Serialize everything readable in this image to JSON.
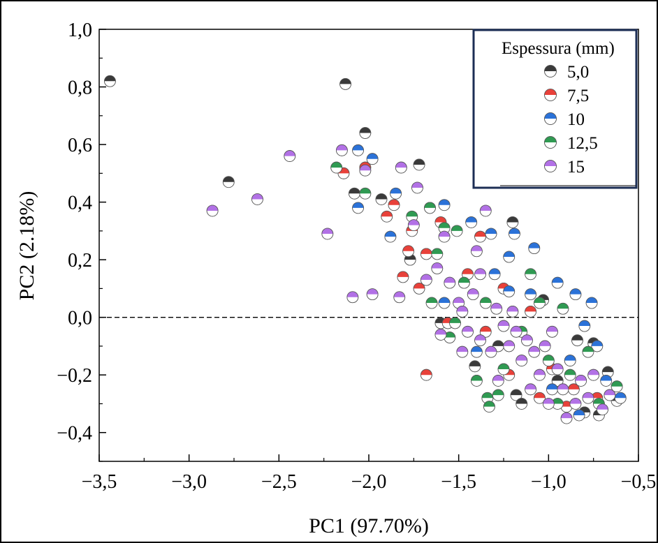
{
  "chart_data": {
    "type": "scatter",
    "xlabel": "PC1 (97.70%)",
    "ylabel": "PC2 (2.18%)",
    "xlim": [
      -3.5,
      -0.5
    ],
    "ylim": [
      -0.5,
      1.0
    ],
    "x_ticks": [
      "−3,5",
      "−3,0",
      "−2,5",
      "−2,0",
      "−1,5",
      "−1,0",
      "−0,5"
    ],
    "y_ticks": [
      "1,0",
      "0,8",
      "0,6",
      "0,4",
      "0,2",
      "0,0",
      "−0,2",
      "−0,4"
    ],
    "x_tick_values": [
      -3.5,
      -3.0,
      -2.5,
      -2.0,
      -1.5,
      -1.0,
      -0.5
    ],
    "y_tick_values": [
      1.0,
      0.8,
      0.6,
      0.4,
      0.2,
      0.0,
      -0.2,
      -0.4
    ],
    "reference_line": {
      "y": 0.0,
      "style": "dashed"
    },
    "legend": {
      "title": "Espessura (mm)",
      "placement": "top-right"
    },
    "series": [
      {
        "name": "5,0",
        "color": "#3a3a3a",
        "points": [
          [
            -3.44,
            0.82
          ],
          [
            -2.13,
            0.81
          ],
          [
            -2.02,
            0.64
          ],
          [
            -2.78,
            0.47
          ],
          [
            -1.72,
            0.53
          ],
          [
            -2.08,
            0.43
          ],
          [
            -1.93,
            0.41
          ],
          [
            -1.2,
            0.33
          ],
          [
            -1.77,
            0.2
          ],
          [
            -1.6,
            -0.02
          ],
          [
            -0.84,
            -0.08
          ],
          [
            -0.75,
            -0.09
          ],
          [
            -0.67,
            -0.19
          ],
          [
            -0.62,
            -0.29
          ],
          [
            -0.8,
            -0.33
          ],
          [
            -0.72,
            -0.34
          ],
          [
            -1.18,
            -0.27
          ],
          [
            -1.41,
            -0.17
          ],
          [
            -1.03,
            0.06
          ],
          [
            -1.28,
            -0.1
          ],
          [
            -1.15,
            -0.3
          ],
          [
            -0.95,
            -0.22
          ]
        ]
      },
      {
        "name": "7,5",
        "color": "#e8413a",
        "points": [
          [
            -2.14,
            0.5
          ],
          [
            -2.02,
            0.52
          ],
          [
            -1.86,
            0.39
          ],
          [
            -1.9,
            0.35
          ],
          [
            -1.66,
            0.38
          ],
          [
            -1.76,
            0.3
          ],
          [
            -1.78,
            0.23
          ],
          [
            -1.81,
            0.14
          ],
          [
            -1.68,
            0.22
          ],
          [
            -1.72,
            0.1
          ],
          [
            -1.6,
            0.33
          ],
          [
            -1.38,
            0.28
          ],
          [
            -1.56,
            -0.02
          ],
          [
            -1.68,
            -0.2
          ],
          [
            -1.25,
            0.1
          ],
          [
            -1.1,
            0.02
          ],
          [
            -0.98,
            -0.18
          ],
          [
            -0.86,
            -0.25
          ],
          [
            -0.73,
            -0.28
          ],
          [
            -1.35,
            -0.05
          ],
          [
            -1.22,
            -0.2
          ],
          [
            -1.05,
            -0.28
          ],
          [
            -0.9,
            -0.31
          ],
          [
            -1.45,
            0.15
          ]
        ]
      },
      {
        "name": "10",
        "color": "#2b72d8",
        "points": [
          [
            -2.06,
            0.58
          ],
          [
            -1.98,
            0.55
          ],
          [
            -2.06,
            0.38
          ],
          [
            -1.85,
            0.43
          ],
          [
            -1.88,
            0.28
          ],
          [
            -1.58,
            0.39
          ],
          [
            -1.43,
            0.33
          ],
          [
            -1.32,
            0.29
          ],
          [
            -1.22,
            0.21
          ],
          [
            -1.19,
            0.29
          ],
          [
            -1.08,
            0.24
          ],
          [
            -1.22,
            0.09
          ],
          [
            -0.95,
            0.12
          ],
          [
            -0.85,
            0.08
          ],
          [
            -0.76,
            0.05
          ],
          [
            -0.8,
            -0.03
          ],
          [
            -0.73,
            -0.1
          ],
          [
            -0.88,
            -0.15
          ],
          [
            -0.6,
            -0.28
          ],
          [
            -0.83,
            -0.34
          ],
          [
            -1.58,
            0.05
          ],
          [
            -1.1,
            0.08
          ],
          [
            -1.3,
            0.15
          ],
          [
            -0.98,
            -0.25
          ],
          [
            -1.4,
            -0.12
          ],
          [
            -0.68,
            -0.22
          ]
        ]
      },
      {
        "name": "12,5",
        "color": "#2f9a52",
        "points": [
          [
            -2.18,
            0.52
          ],
          [
            -2.02,
            0.43
          ],
          [
            -1.76,
            0.35
          ],
          [
            -1.66,
            0.38
          ],
          [
            -1.58,
            0.31
          ],
          [
            -1.62,
            0.22
          ],
          [
            -1.51,
            0.3
          ],
          [
            -1.65,
            0.05
          ],
          [
            -1.55,
            -0.07
          ],
          [
            -1.4,
            -0.22
          ],
          [
            -1.34,
            -0.28
          ],
          [
            -1.33,
            -0.31
          ],
          [
            -1.28,
            -0.27
          ],
          [
            -1.1,
            0.15
          ],
          [
            -0.92,
            0.03
          ],
          [
            -0.78,
            -0.12
          ],
          [
            -0.62,
            -0.24
          ],
          [
            -0.72,
            -0.3
          ],
          [
            -1.47,
            0.12
          ],
          [
            -1.35,
            0.05
          ],
          [
            -1.15,
            -0.05
          ],
          [
            -1.0,
            -0.15
          ],
          [
            -0.88,
            -0.2
          ],
          [
            -1.25,
            -0.18
          ],
          [
            -0.95,
            -0.3
          ],
          [
            -1.52,
            -0.02
          ],
          [
            -1.05,
            0.05
          ]
        ]
      },
      {
        "name": "15",
        "color": "#b271e6",
        "points": [
          [
            -2.87,
            0.37
          ],
          [
            -2.62,
            0.41
          ],
          [
            -2.44,
            0.56
          ],
          [
            -2.23,
            0.29
          ],
          [
            -2.15,
            0.58
          ],
          [
            -2.02,
            0.51
          ],
          [
            -2.09,
            0.07
          ],
          [
            -1.98,
            0.08
          ],
          [
            -1.82,
            0.52
          ],
          [
            -1.73,
            0.45
          ],
          [
            -1.83,
            0.07
          ],
          [
            -1.68,
            0.13
          ],
          [
            -1.62,
            0.17
          ],
          [
            -1.55,
            0.12
          ],
          [
            -1.5,
            0.05
          ],
          [
            -1.48,
            0.02
          ],
          [
            -1.45,
            -0.05
          ],
          [
            -1.38,
            -0.08
          ],
          [
            -1.35,
            0.37
          ],
          [
            -1.32,
            -0.12
          ],
          [
            -1.29,
            0.03
          ],
          [
            -1.25,
            -0.03
          ],
          [
            -1.22,
            -0.1
          ],
          [
            -1.18,
            -0.05
          ],
          [
            -1.15,
            -0.15
          ],
          [
            -1.12,
            -0.08
          ],
          [
            -1.08,
            -0.12
          ],
          [
            -1.05,
            -0.2
          ],
          [
            -1.02,
            -0.1
          ],
          [
            -0.98,
            -0.05
          ],
          [
            -0.95,
            -0.18
          ],
          [
            -0.92,
            -0.25
          ],
          [
            -0.9,
            -0.35
          ],
          [
            -0.85,
            -0.3
          ],
          [
            -0.82,
            -0.22
          ],
          [
            -0.78,
            -0.28
          ],
          [
            -0.75,
            -0.2
          ],
          [
            -0.7,
            -0.32
          ],
          [
            -0.66,
            -0.27
          ],
          [
            -1.6,
            -0.06
          ],
          [
            -1.42,
            0.08
          ],
          [
            -1.38,
            0.15
          ],
          [
            -1.2,
            0.02
          ],
          [
            -1.1,
            -0.25
          ],
          [
            -1.0,
            -0.3
          ],
          [
            -1.28,
            -0.22
          ],
          [
            -1.48,
            -0.12
          ],
          [
            -1.58,
            0.28
          ],
          [
            -1.75,
            0.32
          ],
          [
            -1.4,
            0.23
          ]
        ]
      }
    ]
  }
}
